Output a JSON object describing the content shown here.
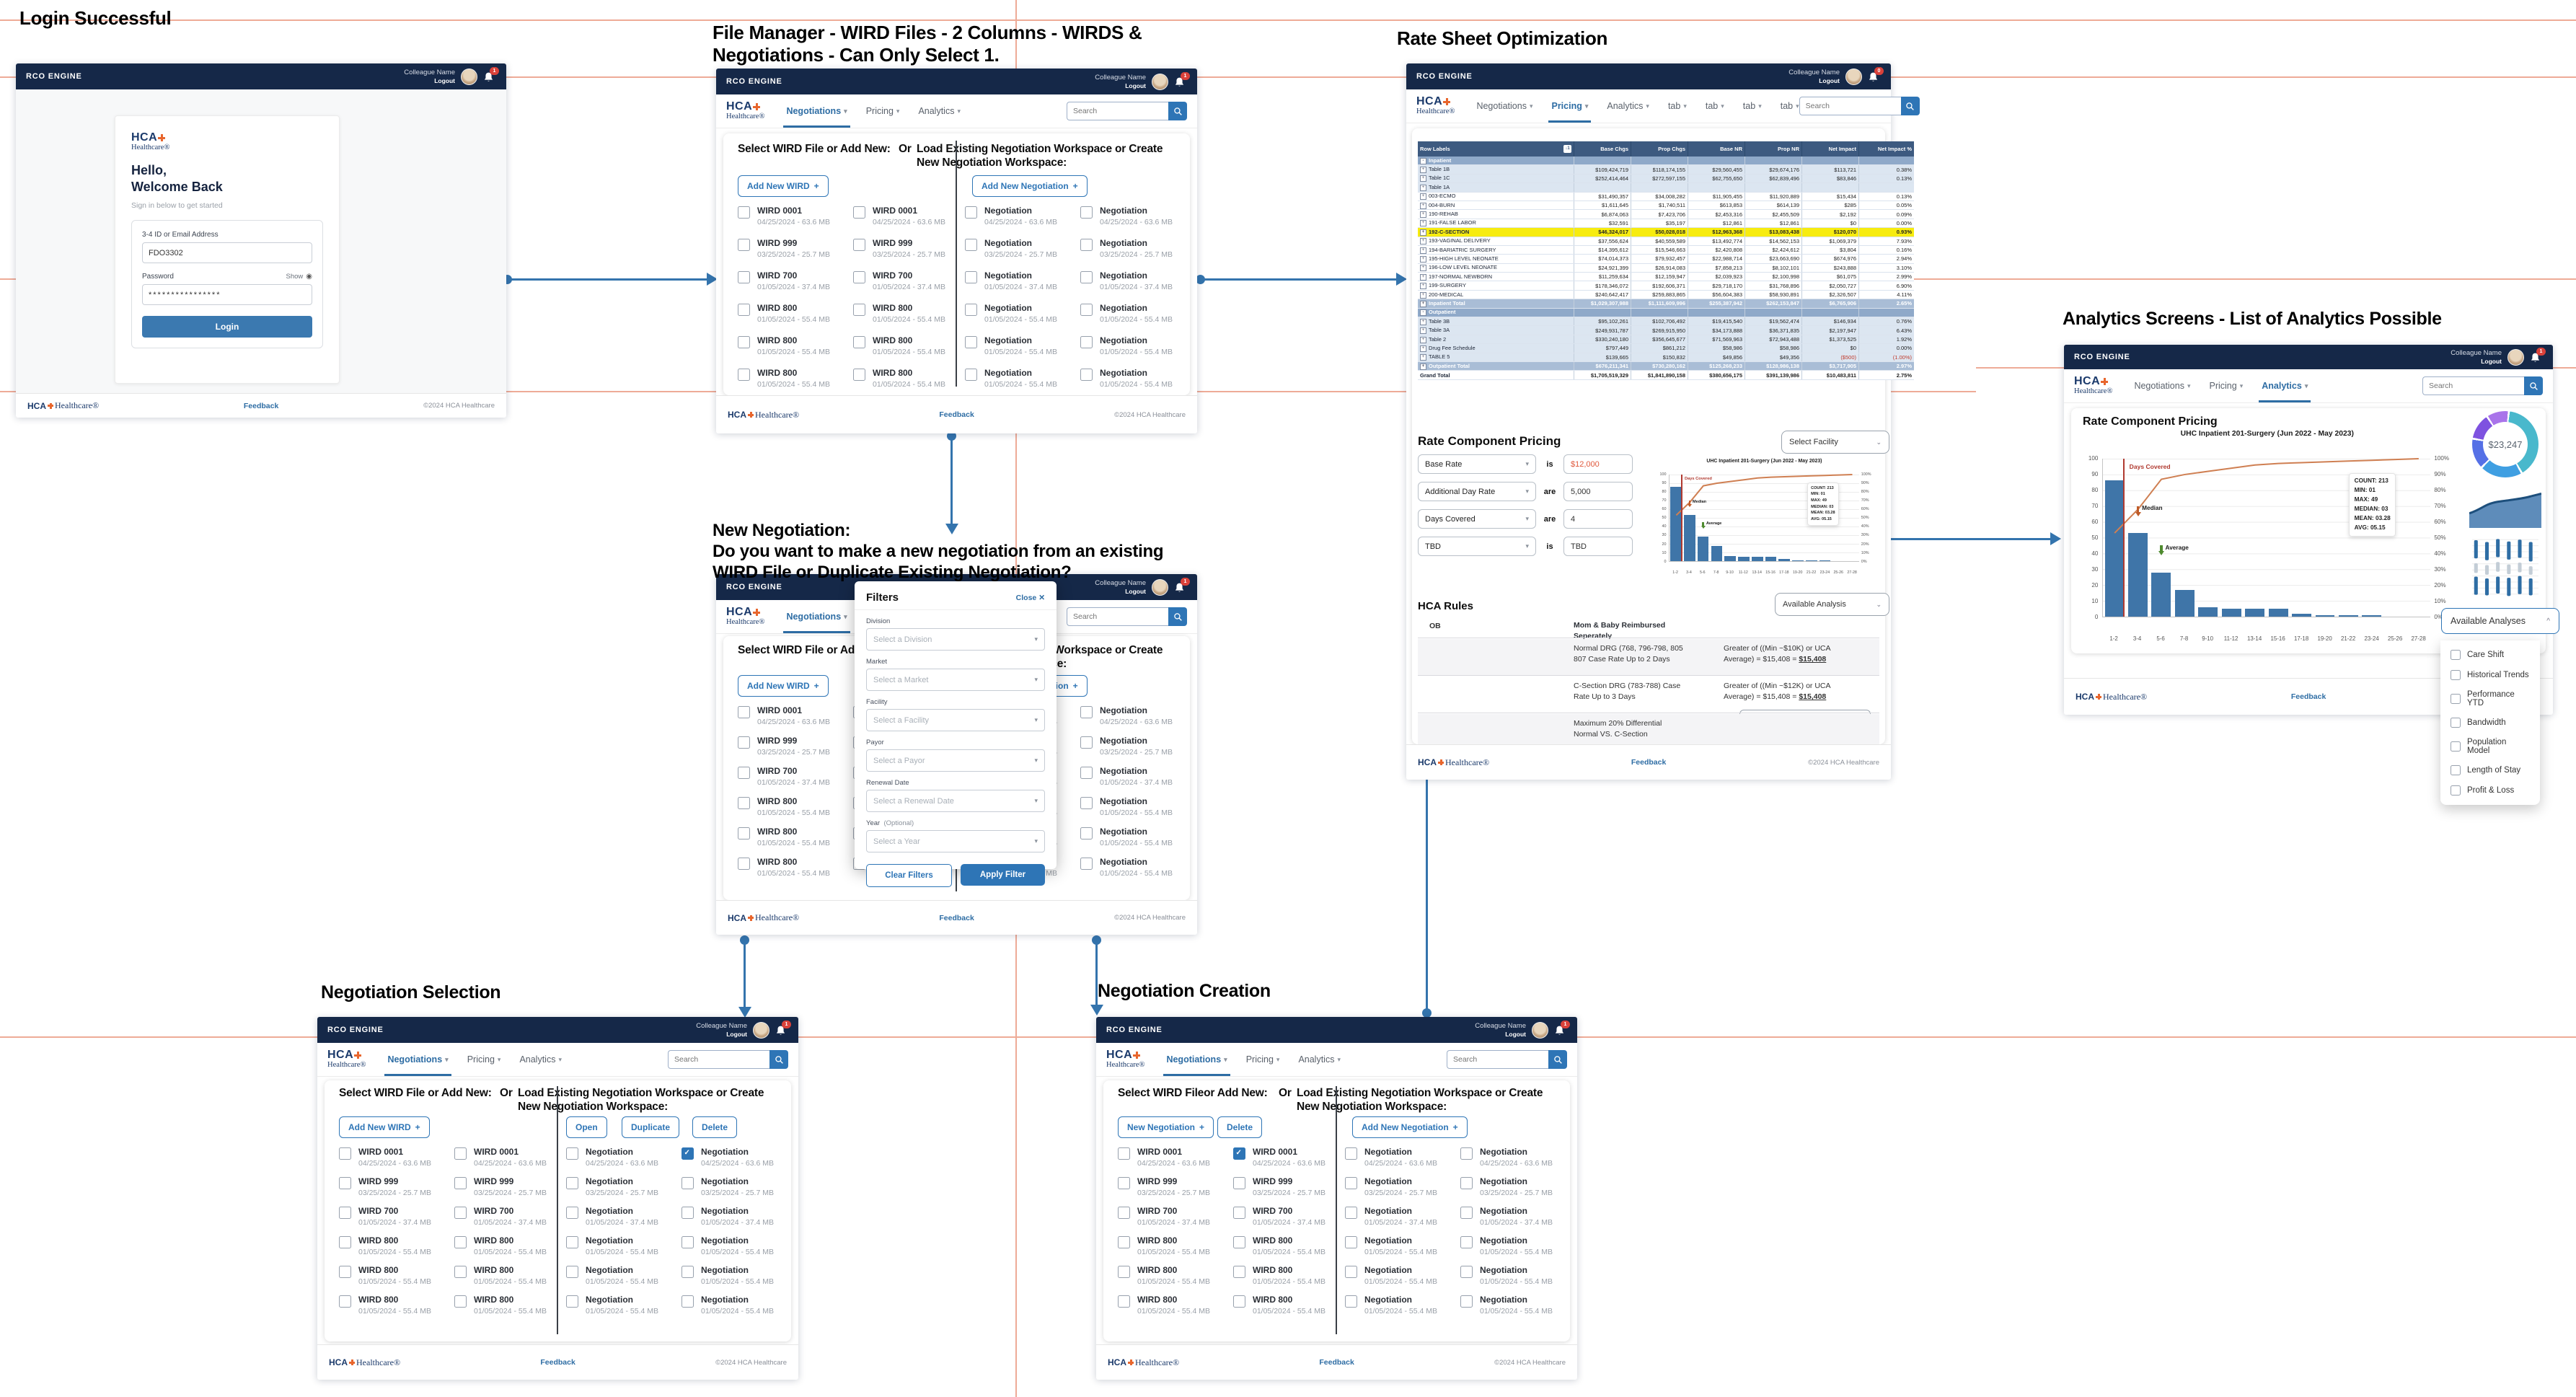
{
  "chrome": {
    "app_name": "RCO ENGINE",
    "colleague": "Colleague Name",
    "logout": "Logout",
    "nav": {
      "negotiations": "Negotiations",
      "pricing": "Pricing",
      "analytics": "Analytics",
      "tab": "tab",
      "caret": "▾"
    },
    "search_placeholder": "Search",
    "footer": {
      "brand_hca": "HCA",
      "brand_rest": "Healthcare®",
      "feedback": "Feedback",
      "copyright": "©2024 HCA Healthcare"
    },
    "logo": {
      "hca": "HCA",
      "healthcare": "Healthcare®"
    }
  },
  "badges": {
    "default": "1",
    "rate_sheet": "0"
  },
  "titles": {
    "login": "Login Successful",
    "file_manager": [
      "File Manager - WIRD Files - 2 Columns - WIRDS &",
      "Negotiations - Can Only Select 1."
    ],
    "rate_sheet": "Rate Sheet Optimization",
    "new_negotiation": [
      "New Negotiation:",
      "Do you want to make a  new negotiation from an existing",
      "WIRD File or Duplicate Existing Negotiation?"
    ],
    "analytics": "Analytics Screens - List of Analytics Possible",
    "selection": "Negotiation Selection",
    "creation": "Negotiation Creation"
  },
  "login": {
    "hello": "Hello,",
    "welcome": "Welcome Back",
    "subtitle": "Sign in below to get started",
    "id_label": "3-4 ID or Email Address",
    "id_value": "FDO3302",
    "password_label": "Password",
    "show": "Show",
    "password_value": "****************",
    "login_button": "Login"
  },
  "workspace": {
    "left_heading": "Select WIRD File or Add New:",
    "left_heading_creation": "Select WIRD Fileor Add New:",
    "or": "Or",
    "right_heading": "Load Existing Negotiation Workspace or Create New Negotiation Workspace:",
    "add_new_wird": "Add New WIRD",
    "add_new_negotiation": "Add New Negotiation",
    "new_negotiation": "New Negotiation",
    "plus": "+",
    "open": "Open",
    "duplicate": "Duplicate",
    "delete": "Delete",
    "negotiation_name": "Negotiation",
    "wird_files": [
      {
        "name": "WIRD 0001",
        "meta": "04/25/2024 - 63.6 MB"
      },
      {
        "name": "WIRD 999",
        "meta": "03/25/2024 - 25.7 MB"
      },
      {
        "name": "WIRD 700",
        "meta": "01/05/2024 - 37.4 MB"
      },
      {
        "name": "WIRD 800",
        "meta": "01/05/2024 - 55.4 MB"
      },
      {
        "name": "WIRD 800",
        "meta": "01/05/2024 - 55.4 MB"
      },
      {
        "name": "WIRD 800",
        "meta": "01/05/2024 - 55.4 MB"
      }
    ]
  },
  "filters": {
    "title": "Filters",
    "close": "Close",
    "close_x": "✕",
    "fields": [
      {
        "label": "Division",
        "placeholder": "Select a Division"
      },
      {
        "label": "Market",
        "placeholder": "Select a Market"
      },
      {
        "label": "Facility",
        "placeholder": "Select a Facility"
      },
      {
        "label": "Payor",
        "placeholder": "Select a Payor"
      },
      {
        "label": "Renewal Date",
        "placeholder": "Select a Renewal Date"
      },
      {
        "label": "Year",
        "optional": "(Optional)",
        "placeholder": "Select a Year"
      }
    ],
    "clear": "Clear Filters",
    "apply": "Apply Filter"
  },
  "rate_sheet": {
    "table": {
      "header_icon": "↓1",
      "columns": [
        "Row Labels",
        "Base Chgs",
        "Prop Chgs",
        "Base NR",
        "Prop NR",
        "Net Impact",
        "Net Impact %"
      ],
      "expander_expanded": "-",
      "expander_collapsed": "+",
      "rows": [
        {
          "label": "Inpatient",
          "type": "grp",
          "v": [
            "",
            "",
            "",
            "",
            "",
            ""
          ]
        },
        {
          "label": "Table 1B",
          "type": "l1",
          "v": [
            "$109,424,719",
            "$118,174,155",
            "$29,560,455",
            "$29,674,176",
            "$113,721",
            "0.38%"
          ]
        },
        {
          "label": "Table 1C",
          "type": "l1",
          "v": [
            "$252,414,464",
            "$272,597,155",
            "$62,755,650",
            "$62,839,496",
            "$83,846",
            "0.13%"
          ]
        },
        {
          "label": "Table 1A",
          "type": "l1",
          "v": [
            "",
            "",
            "",
            "",
            "",
            ""
          ]
        },
        {
          "label": "003-ECMO",
          "type": "l2",
          "v": [
            "$31,490,357",
            "$34,008,282",
            "$11,905,455",
            "$11,920,889",
            "$15,434",
            "0.13%"
          ]
        },
        {
          "label": "004-BURN",
          "type": "l2",
          "v": [
            "$1,611,645",
            "$1,740,511",
            "$613,853",
            "$614,139",
            "$285",
            "0.05%"
          ]
        },
        {
          "label": "190-REHAB",
          "type": "l2",
          "v": [
            "$6,874,063",
            "$7,423,706",
            "$2,453,316",
            "$2,455,509",
            "$2,192",
            "0.09%"
          ]
        },
        {
          "label": "191-FALSE LABOR",
          "type": "l2",
          "v": [
            "$32,591",
            "$35,197",
            "$12,861",
            "$12,861",
            "$0",
            "0.00%"
          ]
        },
        {
          "label": "192-C-SECTION",
          "type": "hl",
          "v": [
            "$46,324,017",
            "$50,028,018",
            "$12,963,368",
            "$13,083,438",
            "$120,070",
            "0.93%"
          ]
        },
        {
          "label": "193-VAGINAL DELIVERY",
          "type": "l2",
          "v": [
            "$37,556,624",
            "$40,559,589",
            "$13,492,774",
            "$14,562,153",
            "$1,069,379",
            "7.93%"
          ]
        },
        {
          "label": "194-BARIATRIC SURGERY",
          "type": "l2",
          "v": [
            "$14,395,612",
            "$15,546,663",
            "$2,420,808",
            "$2,424,612",
            "$3,804",
            "0.16%"
          ]
        },
        {
          "label": "195-HIGH LEVEL NEONATE",
          "type": "l2",
          "v": [
            "$74,014,373",
            "$79,932,457",
            "$22,988,714",
            "$23,663,690",
            "$674,976",
            "2.94%"
          ]
        },
        {
          "label": "196-LOW LEVEL NEONATE",
          "type": "l2",
          "v": [
            "$24,921,399",
            "$26,914,083",
            "$7,858,213",
            "$8,102,101",
            "$243,888",
            "3.10%"
          ]
        },
        {
          "label": "197-NORMAL NEWBORN",
          "type": "l2",
          "v": [
            "$11,259,634",
            "$12,159,947",
            "$2,039,923",
            "$2,100,998",
            "$61,075",
            "2.99%"
          ]
        },
        {
          "label": "199-SURGERY",
          "type": "l2",
          "v": [
            "$178,346,072",
            "$192,606,371",
            "$29,718,170",
            "$31,768,896",
            "$2,050,727",
            "6.90%"
          ]
        },
        {
          "label": "200-MEDICAL",
          "type": "l2",
          "v": [
            "$240,642,417",
            "$259,883,865",
            "$56,604,383",
            "$58,930,891",
            "$2,326,507",
            "4.11%"
          ]
        },
        {
          "label": "Inpatient Total",
          "type": "tot",
          "v": [
            "$1,029,307,988",
            "$1,111,609,996",
            "$255,387,942",
            "$262,153,847",
            "$6,765,906",
            "2.65%"
          ]
        },
        {
          "label": "Outpatient",
          "type": "grp",
          "v": [
            "",
            "",
            "",
            "",
            "",
            ""
          ]
        },
        {
          "label": "Table 3B",
          "type": "l1",
          "v": [
            "$95,102,261",
            "$102,706,492",
            "$19,415,540",
            "$19,562,474",
            "$146,934",
            "0.76%"
          ]
        },
        {
          "label": "Table 3A",
          "type": "l1",
          "v": [
            "$249,931,787",
            "$269,915,950",
            "$34,173,888",
            "$36,371,835",
            "$2,197,947",
            "6.43%"
          ]
        },
        {
          "label": "Table 2",
          "type": "l1",
          "v": [
            "$330,240,180",
            "$356,645,677",
            "$71,569,963",
            "$72,943,488",
            "$1,373,525",
            "1.92%"
          ]
        },
        {
          "label": "Drug Fee Schedule",
          "type": "l1",
          "v": [
            "$797,449",
            "$861,212",
            "$58,986",
            "$58,986",
            "$0",
            "0.00%"
          ]
        },
        {
          "label": "TABLE 5",
          "type": "l1",
          "v": [
            "$139,665",
            "$150,832",
            "$49,856",
            "$49,356",
            "($500)",
            "(1.00%)"
          ]
        },
        {
          "label": "Outpatient Total",
          "type": "tot",
          "v": [
            "$676,211,341",
            "$730,280,162",
            "$125,268,233",
            "$128,986,138",
            "$3,717,905",
            "2.97%"
          ]
        },
        {
          "label": "Grand Total",
          "type": "grand",
          "v": [
            "$1,705,519,329",
            "$1,841,890,158",
            "$380,656,175",
            "$391,139,986",
            "$10,483,811",
            "2.75%"
          ]
        }
      ]
    },
    "rcp": {
      "heading": "Rate Component Pricing",
      "select_facility": "Select Facility",
      "rows": [
        {
          "field": "Base Rate",
          "verb": "is",
          "value": "$12,000",
          "accent": true
        },
        {
          "field": "Additional Day Rate",
          "verb": "are",
          "value": "5,000",
          "accent": false
        },
        {
          "field": "Days Covered",
          "verb": "are",
          "value": "4",
          "accent": false
        },
        {
          "field": "TBD",
          "verb": "is",
          "value": "TBD",
          "accent": false
        }
      ]
    },
    "rules": {
      "heading": "HCA Rules",
      "available_analysis": "Available Analysis",
      "rows": [
        {
          "c1": "OB",
          "c2": [
            "Mom & Baby Reimbursed",
            "Seperately"
          ],
          "c2bold": true,
          "c3a": "",
          "c3b": "",
          "c3bold": "",
          "gray": false
        },
        {
          "c1": "",
          "c2": [
            "Normal DRG (768, 796-798, 805",
            "807 Case Rate Up to 2 Days"
          ],
          "c2bold": false,
          "c3a": "Greater of ((Min ~$10K) or UCA",
          "c3b": "Average) = $15,408 = ",
          "c3bold": "$15,408",
          "gray": true
        },
        {
          "c1": "",
          "c2": [
            "C-Section DRG (783-788) Case",
            "Rate Up to 3 Days"
          ],
          "c2bold": false,
          "c3a": "Greater of ((Min ~$12K) or UCA",
          "c3b": "Average) = $15,408 = ",
          "c3bold": "$15,408",
          "gray": false
        },
        {
          "c1": "",
          "c2": [
            "Maximum 20% Differential",
            "Normal VS. C-Section"
          ],
          "c2bold": false,
          "c3a": "",
          "c3b": "",
          "c3bold": "",
          "gray": true
        }
      ],
      "add_constraint": "+ Add Optimization Constraint"
    }
  },
  "chart_data": {
    "type": "bar",
    "title": "UHC Inpatient 201-Surgery (Jun 2022 - May 2023)",
    "xlabel": "",
    "ylabel": "",
    "ylim": [
      0,
      100
    ],
    "categories": [
      "1-2",
      "3-4",
      "5-6",
      "7-8",
      "9-10",
      "11-12",
      "13-14",
      "15-16",
      "17-18",
      "19-20",
      "21-22",
      "23-24",
      "25-26",
      "27-28"
    ],
    "values": [
      86,
      53,
      28,
      17,
      6,
      5,
      5,
      5,
      2,
      1,
      1,
      1,
      0,
      0
    ],
    "series": [
      {
        "name": "Cases",
        "type": "bar",
        "values": [
          86,
          53,
          28,
          17,
          6,
          5,
          5,
          5,
          2,
          1,
          1,
          1,
          0,
          0
        ]
      },
      {
        "name": "Cumulative %",
        "type": "line",
        "values": [
          53,
          68,
          87,
          90,
          92,
          94,
          96,
          97,
          97.5,
          98,
          98.5,
          99,
          99.5,
          100
        ]
      }
    ],
    "left_ticks": [
      "100",
      "90",
      "80",
      "70",
      "60",
      "50",
      "40",
      "30",
      "20",
      "10",
      "0"
    ],
    "right_ticks": [
      "100%",
      "90%",
      "80%",
      "70%",
      "60%",
      "50%",
      "40%",
      "30%",
      "20%",
      "10%",
      "0%"
    ],
    "days_covered_label": "Days Covered",
    "median_label": "Median",
    "average_label": "Average",
    "stats": [
      "COUNT: 213",
      "MIN: 01",
      "MAX: 49",
      "MEDIAN: 03",
      "MEAN: 03.28",
      "AVG: 05.15"
    ],
    "annotations": {
      "days_covered_x_pct": 6.1,
      "median_bar_index": 1,
      "average_bar_index": 2
    },
    "grid": true,
    "legend_position": "none"
  },
  "analytics": {
    "heading": "Rate Component Pricing",
    "available_analyses": "Available Analyses",
    "caret_up": "^",
    "analyses": [
      "Care Shift",
      "Historical Trends",
      "Performance YTD",
      "Bandwidth",
      "Population Model",
      "Length of Stay",
      "Profit & Loss"
    ],
    "donut_value": "$23,247",
    "donut_segments": [
      {
        "color": "#49b8cc",
        "pct": 40
      },
      {
        "color": "#3f9fe2",
        "pct": 21
      },
      {
        "color": "#5570e6",
        "pct": 15
      },
      {
        "color": "#7e52e0",
        "pct": 13
      },
      {
        "color": "#a974ea",
        "pct": 11
      }
    ]
  }
}
